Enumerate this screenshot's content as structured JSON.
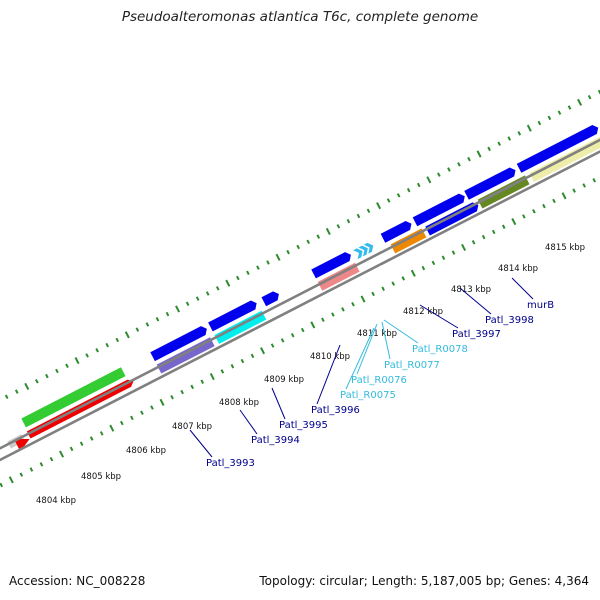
{
  "title": "Pseudoalteromonas atlantica T6c, complete genome",
  "accession": "Accession: NC_008228",
  "topology": "Topology: circular; Length: 5,187,005 bp; Genes: 4,364",
  "kbp_labels": [
    "4804 kbp",
    "4805 kbp",
    "4806 kbp",
    "4807 kbp",
    "4808 kbp",
    "4809 kbp",
    "4810 kbp",
    "4811 kbp",
    "4812 kbp",
    "4813 kbp",
    "4814 kbp",
    "4815 kbp"
  ],
  "gene_labels": [
    {
      "text": "Patl_3993",
      "color": "#00008b"
    },
    {
      "text": "Patl_3994",
      "color": "#00008b"
    },
    {
      "text": "Patl_3995",
      "color": "#00008b"
    },
    {
      "text": "Patl_3996",
      "color": "#00008b"
    },
    {
      "text": "Patl_R0075",
      "color": "#33bbdd"
    },
    {
      "text": "Patl_R0076",
      "color": "#33bbdd"
    },
    {
      "text": "Patl_R0077",
      "color": "#33bbdd"
    },
    {
      "text": "Patl_R0078",
      "color": "#33bbdd"
    },
    {
      "text": "Patl_3997",
      "color": "#00008b"
    },
    {
      "text": "Patl_3998",
      "color": "#00008b"
    },
    {
      "text": "murB",
      "color": "#00008b"
    }
  ],
  "colors": {
    "backbone": "#808080",
    "tick": "#2e8b2e",
    "blue": "#0000ee",
    "red": "#ee0000",
    "green": "#33cc33",
    "cyan": "#00eeee",
    "purple": "#7766cc",
    "pink": "#ee8888",
    "orange": "#ee8800",
    "olive": "#668822",
    "khaki": "#eeeeaa",
    "gray": "#cccccc",
    "rna": "#33bbee"
  }
}
